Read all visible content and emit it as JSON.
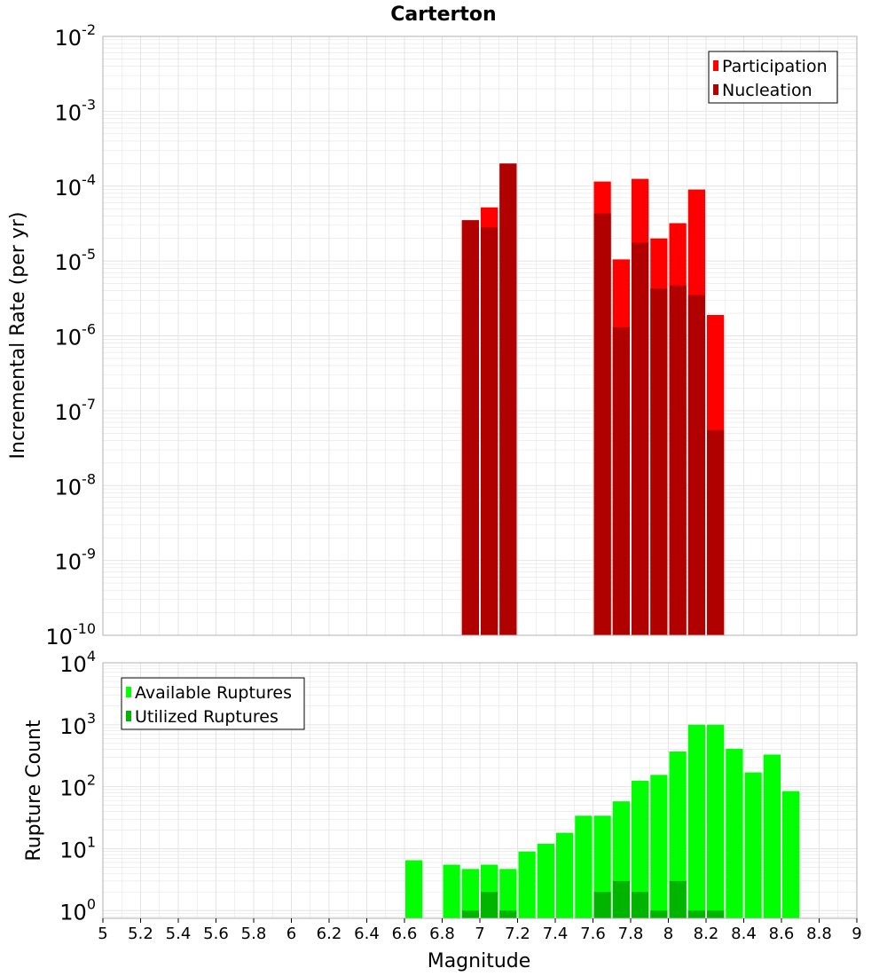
{
  "title": "Carterton",
  "xlabel": "Magnitude",
  "colors": {
    "participation": "#ff0000",
    "nucleation": "#b00000",
    "available": "#00ff00",
    "utilized": "#00b400",
    "grid": "#e4e4e4",
    "frame": "#b0b0b0"
  },
  "x_ticks": [
    "5",
    "5.2",
    "5.4",
    "5.6",
    "5.8",
    "6",
    "6.2",
    "6.4",
    "6.6",
    "6.8",
    "7",
    "7.2",
    "7.4",
    "7.6",
    "7.8",
    "8",
    "8.2",
    "8.4",
    "8.6",
    "8.8",
    "9"
  ],
  "chart_data": [
    {
      "type": "bar",
      "name": "top-rate-panel",
      "ylabel": "Incremental Rate (per yr)",
      "ylog": true,
      "xlim": [
        5,
        9
      ],
      "ylim": [
        1e-10,
        0.01
      ],
      "y_tick_exponents": [
        "-10",
        "-9",
        "-8",
        "-7",
        "-6",
        "-5",
        "-4",
        "-3",
        "-2"
      ],
      "legend": {
        "position": "top-right",
        "entries": [
          "Participation",
          "Nucleation"
        ]
      },
      "x": [
        6.95,
        7.05,
        7.15,
        7.65,
        7.75,
        7.85,
        7.95,
        8.05,
        8.15,
        8.25
      ],
      "series": [
        {
          "name": "Participation",
          "values": [
            3.5e-05,
            5.2e-05,
            0.0002,
            0.000115,
            1.05e-05,
            0.000125,
            2e-05,
            3.2e-05,
            9e-05,
            1.9e-06
          ]
        },
        {
          "name": "Nucleation",
          "values": [
            3.5e-05,
            2.8e-05,
            0.0002,
            4.3e-05,
            1.3e-06,
            1.75e-05,
            4.3e-06,
            4.7e-06,
            3.5e-06,
            5.5e-08
          ]
        }
      ]
    },
    {
      "type": "bar",
      "name": "bottom-count-panel",
      "ylabel": "Rupture Count",
      "ylog": true,
      "xlim": [
        5,
        9
      ],
      "ylim": [
        0.75,
        10000
      ],
      "y_tick_exponents": [
        "0",
        "1",
        "2",
        "3",
        "4"
      ],
      "legend": {
        "position": "top-left",
        "entries": [
          "Available Ruptures",
          "Utilized Ruptures"
        ]
      },
      "x": [
        6.65,
        6.75,
        6.85,
        6.95,
        7.05,
        7.15,
        7.25,
        7.35,
        7.45,
        7.55,
        7.65,
        7.75,
        7.85,
        7.95,
        8.05,
        8.15,
        8.25,
        8.35,
        8.45,
        8.55,
        8.65
      ],
      "series": [
        {
          "name": "Available Ruptures",
          "values": [
            6.5,
            0,
            5.5,
            4.7,
            5.5,
            4.7,
            9,
            12,
            18,
            34,
            34,
            58,
            125,
            155,
            370,
            1000,
            1000,
            410,
            170,
            330,
            85
          ]
        },
        {
          "name": "Utilized Ruptures",
          "values": [
            0,
            0,
            0,
            1,
            2,
            1,
            0,
            0,
            0,
            0,
            2,
            3,
            2,
            1,
            3,
            1,
            1,
            0,
            0,
            0,
            0
          ]
        }
      ]
    }
  ]
}
